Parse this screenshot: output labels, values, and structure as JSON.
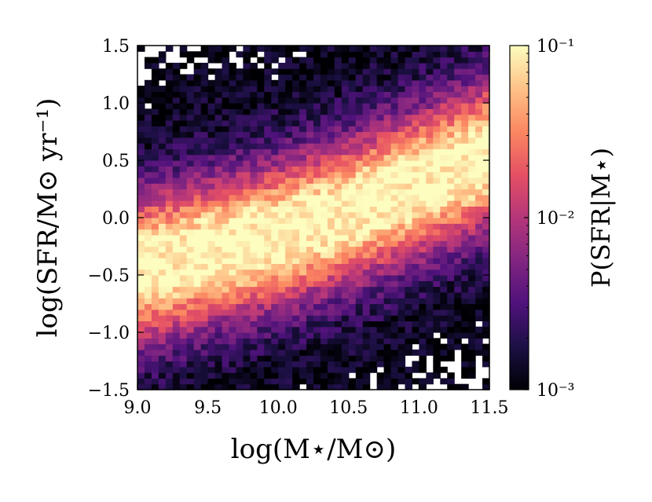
{
  "chart_data": {
    "type": "heatmap",
    "xlabel": "log(M⋆/M⊙)",
    "ylabel": "log(SFR/M⊙ yr⁻¹)",
    "xlim": [
      9.0,
      11.5
    ],
    "ylim": [
      -1.5,
      1.5
    ],
    "x_ticks": [
      9.0,
      9.5,
      10.0,
      10.5,
      11.0,
      11.5
    ],
    "x_tick_labels": [
      "9.0",
      "9.5",
      "10.0",
      "10.5",
      "11.0",
      "11.5"
    ],
    "y_ticks": [
      -1.5,
      -1.0,
      -0.5,
      0.0,
      0.5,
      1.0,
      1.5
    ],
    "y_tick_labels": [
      "−1.5",
      "−1.0",
      "−0.5",
      "0.0",
      "0.5",
      "1.0",
      "1.5"
    ],
    "grid": false,
    "bins": {
      "nx": 50,
      "ny": 60
    },
    "distribution": {
      "description_of_values": "conditional probability P(SFR|M⋆) per bin, main-sequence ridge",
      "ridge_sfr_at_mass": [
        [
          9.0,
          -0.45
        ],
        [
          9.5,
          -0.3
        ],
        [
          10.0,
          -0.15
        ],
        [
          10.5,
          0.05
        ],
        [
          11.0,
          0.3
        ],
        [
          11.5,
          0.55
        ]
      ],
      "ridge_width_dex": 0.45,
      "peak_value": 0.1,
      "floor_value": 0.001
    },
    "colorbar": {
      "label": "P(SFR|M⋆)",
      "scale": "log",
      "range": [
        0.001,
        0.1
      ],
      "tick_labels": [
        "10⁻¹",
        "10⁻²",
        "10⁻³"
      ],
      "tick_values": [
        0.1,
        0.01,
        0.001
      ],
      "colormap": "magma",
      "colors": [
        "#000004",
        "#1c1044",
        "#4f127b",
        "#812581",
        "#b5367a",
        "#e55064",
        "#fb8761",
        "#fec287",
        "#fcfdbf"
      ]
    }
  }
}
